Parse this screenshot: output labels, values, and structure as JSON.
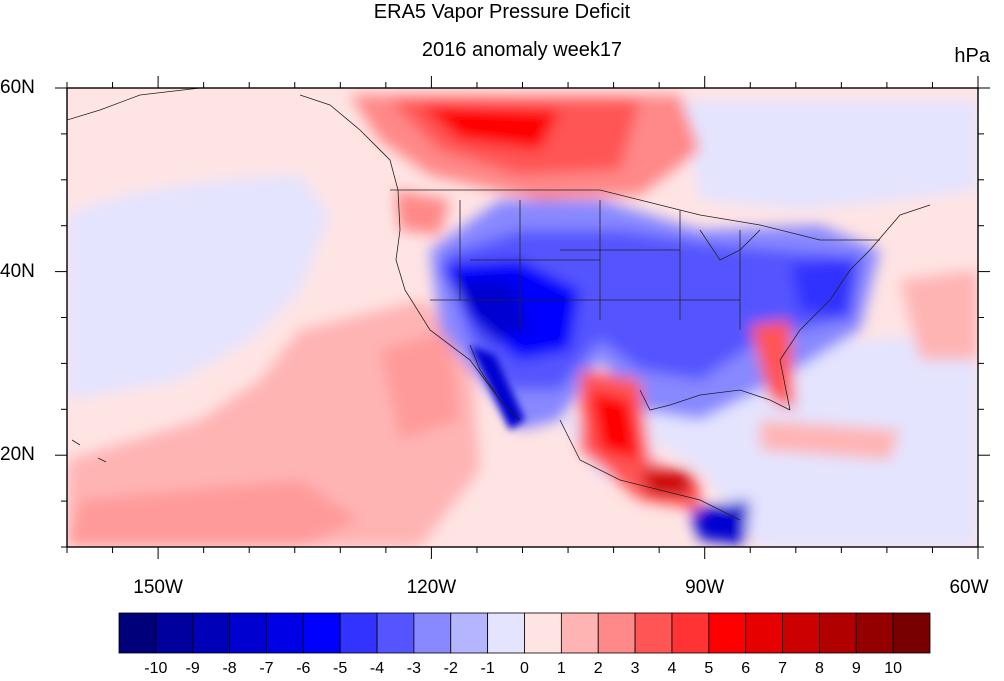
{
  "title": "ERA5 Vapor Pressure Deficit",
  "subtitle": "2016 anomaly week17",
  "units": "hPa",
  "map": {
    "lon_range": [
      -160,
      -60
    ],
    "lat_range": [
      10,
      60
    ],
    "lat_labels": [
      {
        "value": 60,
        "text": "60N"
      },
      {
        "value": 40,
        "text": "40N"
      },
      {
        "value": 20,
        "text": "20N"
      }
    ],
    "lon_labels": [
      {
        "value": -150,
        "text": "150W"
      },
      {
        "value": -120,
        "text": "120W"
      },
      {
        "value": -90,
        "text": "90W"
      },
      {
        "value": -60,
        "text": "60W"
      }
    ]
  },
  "colorbar": {
    "labels": [
      "-10",
      "-9",
      "-8",
      "-7",
      "-6",
      "-5",
      "-4",
      "-3",
      "-2",
      "-1",
      "0",
      "1",
      "2",
      "3",
      "4",
      "5",
      "6",
      "7",
      "8",
      "9",
      "10"
    ],
    "colors": [
      "#00007a",
      "#00009e",
      "#0000b8",
      "#0000d0",
      "#0000e6",
      "#0000ff",
      "#3333ff",
      "#5555ff",
      "#8888ff",
      "#b4b4ff",
      "#e4e4ff",
      "#ffe4e4",
      "#ffb4b4",
      "#ff8888",
      "#ff5555",
      "#ff3333",
      "#ff0000",
      "#e60000",
      "#cc0000",
      "#b00000",
      "#940000",
      "#780000"
    ]
  }
}
